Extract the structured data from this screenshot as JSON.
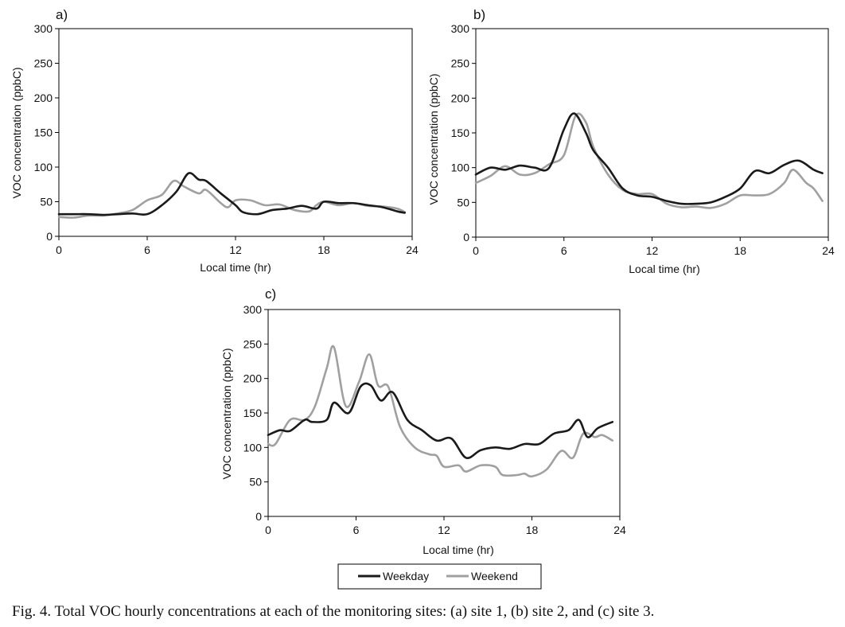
{
  "caption": "Fig. 4. Total VOC hourly concentrations at each of the monitoring sites: (a) site 1, (b) site 2, and (c) site 3.",
  "colors": {
    "weekday": "#1a1a1a",
    "weekend": "#a0a0a0",
    "axis": "#000000"
  },
  "legend": {
    "placement": "bottom-center",
    "items": [
      "Weekday",
      "Weekend"
    ]
  },
  "chart_data": [
    {
      "type": "line",
      "panel_label": "a)",
      "xlabel": "Local time (hr)",
      "ylabel": "VOC concentration (ppbC)",
      "xlim": [
        0,
        24
      ],
      "ylim": [
        0,
        300
      ],
      "xticks": [
        0,
        6,
        12,
        18,
        24
      ],
      "yticks": [
        0,
        50,
        100,
        150,
        200,
        250,
        300
      ],
      "grid": false,
      "series": [
        {
          "name": "Weekday",
          "points": [
            [
              0,
              32
            ],
            [
              1,
              32
            ],
            [
              2,
              32
            ],
            [
              3,
              31
            ],
            [
              4,
              32
            ],
            [
              5,
              33
            ],
            [
              6,
              32
            ],
            [
              7,
              45
            ],
            [
              8,
              65
            ],
            [
              8.8,
              91
            ],
            [
              9.5,
              82
            ],
            [
              10,
              80
            ],
            [
              11,
              62
            ],
            [
              12,
              45
            ],
            [
              12.5,
              35
            ],
            [
              13.5,
              32
            ],
            [
              14.5,
              38
            ],
            [
              15.5,
              40
            ],
            [
              16.5,
              44
            ],
            [
              17.5,
              40
            ],
            [
              18,
              50
            ],
            [
              19,
              48
            ],
            [
              20,
              48
            ],
            [
              21,
              45
            ],
            [
              22,
              42
            ],
            [
              23,
              36
            ],
            [
              23.5,
              34
            ]
          ]
        },
        {
          "name": "Weekend",
          "points": [
            [
              0,
              28
            ],
            [
              1,
              27
            ],
            [
              2,
              30
            ],
            [
              3,
              30
            ],
            [
              4,
              33
            ],
            [
              5,
              38
            ],
            [
              6,
              52
            ],
            [
              7,
              60
            ],
            [
              7.8,
              80
            ],
            [
              8.5,
              72
            ],
            [
              9.5,
              62
            ],
            [
              10,
              67
            ],
            [
              11,
              48
            ],
            [
              11.5,
              42
            ],
            [
              12,
              52
            ],
            [
              13,
              52
            ],
            [
              14,
              45
            ],
            [
              15,
              46
            ],
            [
              16,
              38
            ],
            [
              17,
              36
            ],
            [
              17.5,
              45
            ],
            [
              18,
              50
            ],
            [
              19,
              45
            ],
            [
              20,
              48
            ],
            [
              21,
              44
            ],
            [
              22,
              43
            ],
            [
              23,
              40
            ],
            [
              23.5,
              35
            ]
          ]
        }
      ]
    },
    {
      "type": "line",
      "panel_label": "b)",
      "xlabel": "Local time (hr)",
      "ylabel": "VOC concentration (ppbC)",
      "xlim": [
        0,
        24
      ],
      "ylim": [
        0,
        300
      ],
      "xticks": [
        0,
        6,
        12,
        18,
        24
      ],
      "yticks": [
        0,
        50,
        100,
        150,
        200,
        250,
        300
      ],
      "grid": false,
      "series": [
        {
          "name": "Weekday",
          "points": [
            [
              0,
              90
            ],
            [
              1,
              100
            ],
            [
              2,
              97
            ],
            [
              3,
              103
            ],
            [
              4,
              100
            ],
            [
              5,
              100
            ],
            [
              6,
              155
            ],
            [
              6.7,
              178
            ],
            [
              7.5,
              150
            ],
            [
              8,
              125
            ],
            [
              9,
              100
            ],
            [
              10,
              70
            ],
            [
              11,
              60
            ],
            [
              12,
              58
            ],
            [
              13,
              52
            ],
            [
              14,
              48
            ],
            [
              15,
              48
            ],
            [
              16,
              50
            ],
            [
              17,
              58
            ],
            [
              18,
              70
            ],
            [
              19,
              95
            ],
            [
              20,
              92
            ],
            [
              21,
              104
            ],
            [
              22,
              110
            ],
            [
              23,
              97
            ],
            [
              23.6,
              92
            ]
          ]
        },
        {
          "name": "Weekend",
          "points": [
            [
              0,
              78
            ],
            [
              1,
              88
            ],
            [
              2,
              102
            ],
            [
              3,
              90
            ],
            [
              4,
              92
            ],
            [
              5,
              105
            ],
            [
              6,
              118
            ],
            [
              6.8,
              175
            ],
            [
              7.5,
              165
            ],
            [
              8,
              130
            ],
            [
              9,
              90
            ],
            [
              10,
              68
            ],
            [
              11,
              62
            ],
            [
              12,
              62
            ],
            [
              13,
              48
            ],
            [
              14,
              43
            ],
            [
              15,
              44
            ],
            [
              16,
              42
            ],
            [
              17,
              48
            ],
            [
              18,
              60
            ],
            [
              19,
              60
            ],
            [
              20,
              62
            ],
            [
              21,
              78
            ],
            [
              21.6,
              97
            ],
            [
              22.5,
              78
            ],
            [
              23,
              70
            ],
            [
              23.6,
              52
            ]
          ]
        }
      ]
    },
    {
      "type": "line",
      "panel_label": "c)",
      "xlabel": "Local time (hr)",
      "ylabel": "VOC concentration (ppbC)",
      "xlim": [
        0,
        24
      ],
      "ylim": [
        0,
        300
      ],
      "xticks": [
        0,
        6,
        12,
        18,
        24
      ],
      "yticks": [
        0,
        50,
        100,
        150,
        200,
        250,
        300
      ],
      "grid": false,
      "series": [
        {
          "name": "Weekday",
          "points": [
            [
              0,
              118
            ],
            [
              0.8,
              125
            ],
            [
              1.5,
              124
            ],
            [
              2.5,
              140
            ],
            [
              3,
              137
            ],
            [
              4,
              140
            ],
            [
              4.5,
              165
            ],
            [
              5.5,
              150
            ],
            [
              6.3,
              188
            ],
            [
              7,
              190
            ],
            [
              7.7,
              168
            ],
            [
              8.5,
              180
            ],
            [
              9.5,
              140
            ],
            [
              10.5,
              125
            ],
            [
              11.5,
              110
            ],
            [
              12.5,
              113
            ],
            [
              13.5,
              85
            ],
            [
              14.5,
              96
            ],
            [
              15.5,
              100
            ],
            [
              16.5,
              98
            ],
            [
              17.5,
              105
            ],
            [
              18.5,
              105
            ],
            [
              19.5,
              120
            ],
            [
              20.5,
              125
            ],
            [
              21.2,
              140
            ],
            [
              21.8,
              115
            ],
            [
              22.5,
              128
            ],
            [
              23.5,
              137
            ]
          ]
        },
        {
          "name": "Weekend",
          "points": [
            [
              0,
              105
            ],
            [
              0.5,
              105
            ],
            [
              1.5,
              140
            ],
            [
              2.5,
              140
            ],
            [
              3.2,
              160
            ],
            [
              4,
              215
            ],
            [
              4.5,
              245
            ],
            [
              5.3,
              160
            ],
            [
              6.2,
              195
            ],
            [
              6.9,
              235
            ],
            [
              7.5,
              190
            ],
            [
              8.2,
              188
            ],
            [
              9,
              130
            ],
            [
              10,
              100
            ],
            [
              11,
              90
            ],
            [
              11.5,
              88
            ],
            [
              12,
              72
            ],
            [
              13,
              74
            ],
            [
              13.5,
              65
            ],
            [
              14.5,
              74
            ],
            [
              15.5,
              72
            ],
            [
              16,
              60
            ],
            [
              17,
              60
            ],
            [
              17.5,
              62
            ],
            [
              18,
              58
            ],
            [
              19,
              68
            ],
            [
              20,
              95
            ],
            [
              20.8,
              85
            ],
            [
              21.5,
              120
            ],
            [
              22.3,
              115
            ],
            [
              22.8,
              118
            ],
            [
              23.5,
              110
            ]
          ]
        }
      ]
    }
  ]
}
